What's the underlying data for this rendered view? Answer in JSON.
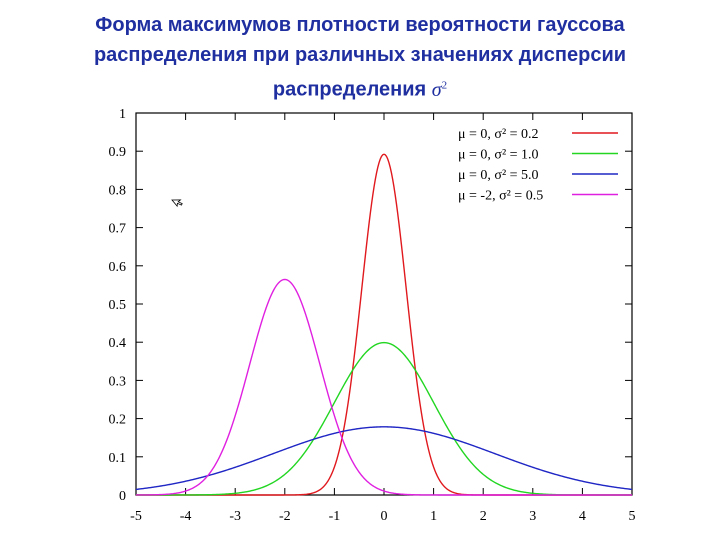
{
  "title": {
    "line1": "Форма максимумов плотности вероятности гауссова",
    "line2": "распределения при различных значениях дисперсии",
    "line3": "распределения",
    "symbol": "σ",
    "symbol_sup": "2"
  },
  "chart_data": {
    "type": "line",
    "title": "Форма максимумов плотности вероятности гауссова распределения при различных значениях дисперсии распределения σ2",
    "xlabel": "",
    "ylabel": "",
    "xlim": [
      -5,
      5
    ],
    "ylim": [
      0,
      1
    ],
    "x_ticks": [
      -5,
      -4,
      -3,
      -2,
      -1,
      0,
      1,
      2,
      3,
      4,
      5
    ],
    "y_ticks": [
      0,
      0.1,
      0.2,
      0.3,
      0.4,
      0.5,
      0.6,
      0.7,
      0.8,
      0.9,
      1
    ],
    "x_tick_labels": [
      "-5",
      "-4",
      "-3",
      "-2",
      "-1",
      "0",
      "1",
      "2",
      "3",
      "4",
      "5"
    ],
    "y_tick_labels": [
      "0",
      "0.1",
      "0.2",
      "0.3",
      "0.4",
      "0.5",
      "0.6",
      "0.7",
      "0.8",
      "0.9",
      "1"
    ],
    "grid": false,
    "legend_position": "top-right",
    "series": [
      {
        "label": "μ =  0, σ² = 0.2",
        "mu": 0,
        "variance": 0.2,
        "color": "#e0191e",
        "peak": 0.892
      },
      {
        "label": "μ =  0, σ² = 1.0",
        "mu": 0,
        "variance": 1.0,
        "color": "#22d622",
        "peak": 0.399
      },
      {
        "label": "μ =  0, σ² = 5.0",
        "mu": 0,
        "variance": 5.0,
        "color": "#1f26c4",
        "peak": 0.178
      },
      {
        "label": "μ = -2, σ² = 0.5",
        "mu": -2,
        "variance": 0.5,
        "color": "#e020e0",
        "peak": 0.564
      }
    ]
  }
}
